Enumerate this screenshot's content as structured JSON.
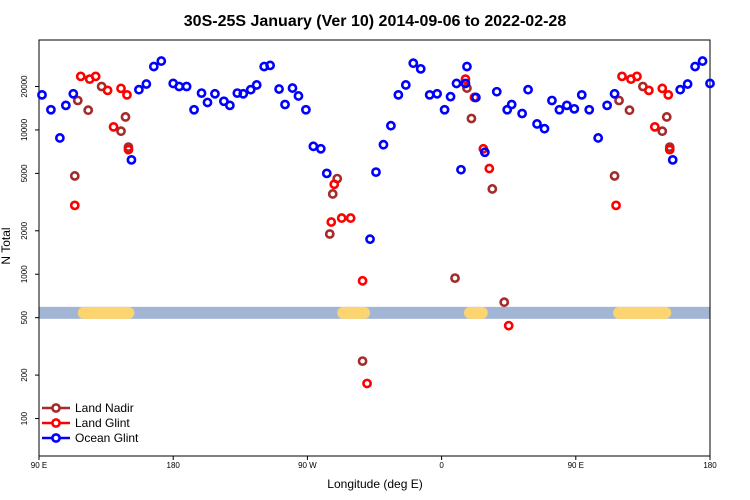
{
  "chart_data": {
    "type": "scatter",
    "title": "30S-25S January (Ver 10)   2014-09-06 to 2022-02-28",
    "xlabel": "Longitude (deg E)",
    "ylabel": "N Total",
    "y_scale": "log",
    "xlim": [
      90,
      540
    ],
    "ylim": [
      55,
      42000
    ],
    "x_ticks": [
      {
        "value": 90,
        "label": "90 E"
      },
      {
        "value": 180,
        "label": "180"
      },
      {
        "value": 270,
        "label": "90 W"
      },
      {
        "value": 360,
        "label": "0"
      },
      {
        "value": 450,
        "label": "90 E"
      },
      {
        "value": 540,
        "label": "180"
      }
    ],
    "y_ticks": [
      {
        "value": 100,
        "label": "100"
      },
      {
        "value": 200,
        "label": "200"
      },
      {
        "value": 500,
        "label": "500"
      },
      {
        "value": 1000,
        "label": "1000"
      },
      {
        "value": 2000,
        "label": "2000"
      },
      {
        "value": 5000,
        "label": "5000"
      },
      {
        "value": 10000,
        "label": "10000"
      },
      {
        "value": 20000,
        "label": "20000"
      }
    ],
    "band": {
      "y": 540,
      "ocean_color": "#a2b5d4",
      "land_color": "#fcd570",
      "land_ranges": [
        [
          116,
          154
        ],
        [
          290,
          312
        ],
        [
          375,
          391
        ],
        [
          475,
          514
        ]
      ]
    },
    "series": [
      {
        "name": "Land Nadir",
        "color": "#a52a2a",
        "points": [
          [
            114,
            4800
          ],
          [
            116,
            16000
          ],
          [
            123,
            13700
          ],
          [
            132,
            20000
          ],
          [
            145,
            9800
          ],
          [
            148,
            12300
          ],
          [
            150,
            7600
          ],
          [
            285,
            1900
          ],
          [
            287,
            3600
          ],
          [
            290,
            4600
          ],
          [
            307,
            250
          ],
          [
            402,
            640
          ],
          [
            369,
            940
          ],
          [
            377,
            19500
          ],
          [
            380,
            12000
          ],
          [
            394,
            3900
          ],
          [
            476,
            4800
          ],
          [
            479,
            16000
          ],
          [
            486,
            13700
          ],
          [
            495,
            20000
          ],
          [
            508,
            9800
          ],
          [
            511,
            12300
          ],
          [
            513,
            7600
          ]
        ]
      },
      {
        "name": "Land Glint",
        "color": "#ff0000",
        "points": [
          [
            114,
            3000
          ],
          [
            118,
            23500
          ],
          [
            124,
            22500
          ],
          [
            128,
            23500
          ],
          [
            136,
            18800
          ],
          [
            140,
            10500
          ],
          [
            145,
            19400
          ],
          [
            149,
            17500
          ],
          [
            150,
            7300
          ],
          [
            286,
            2300
          ],
          [
            288,
            4200
          ],
          [
            293,
            2450
          ],
          [
            299,
            2450
          ],
          [
            307,
            900
          ],
          [
            310,
            175
          ],
          [
            376,
            22500
          ],
          [
            382,
            16800
          ],
          [
            388,
            7400
          ],
          [
            392,
            5400
          ],
          [
            405,
            440
          ],
          [
            477,
            3000
          ],
          [
            481,
            23500
          ],
          [
            487,
            22500
          ],
          [
            491,
            23500
          ],
          [
            499,
            18800
          ],
          [
            503,
            10500
          ],
          [
            508,
            19400
          ],
          [
            512,
            17500
          ],
          [
            513,
            7300
          ]
        ]
      },
      {
        "name": "Ocean Glint",
        "color": "#0000ff",
        "points": [
          [
            92,
            17500
          ],
          [
            98,
            13800
          ],
          [
            104,
            8800
          ],
          [
            108,
            14800
          ],
          [
            113,
            17800
          ],
          [
            152,
            6200
          ],
          [
            157,
            19000
          ],
          [
            162,
            20800
          ],
          [
            167,
            27500
          ],
          [
            172,
            30000
          ],
          [
            180,
            21000
          ],
          [
            184,
            20000
          ],
          [
            189,
            20000
          ],
          [
            194,
            13800
          ],
          [
            199,
            18000
          ],
          [
            203,
            15500
          ],
          [
            208,
            17800
          ],
          [
            214,
            15800
          ],
          [
            218,
            14800
          ],
          [
            223,
            18000
          ],
          [
            227,
            17800
          ],
          [
            232,
            19000
          ],
          [
            236,
            20500
          ],
          [
            241,
            27500
          ],
          [
            245,
            28000
          ],
          [
            251,
            19200
          ],
          [
            255,
            15000
          ],
          [
            260,
            19500
          ],
          [
            264,
            17200
          ],
          [
            269,
            13800
          ],
          [
            274,
            7700
          ],
          [
            279,
            7400
          ],
          [
            283,
            5000
          ],
          [
            312,
            1750
          ],
          [
            316,
            5100
          ],
          [
            321,
            7900
          ],
          [
            326,
            10700
          ],
          [
            331,
            17500
          ],
          [
            336,
            20500
          ],
          [
            341,
            29000
          ],
          [
            346,
            26500
          ],
          [
            352,
            17500
          ],
          [
            357,
            17800
          ],
          [
            362,
            13800
          ],
          [
            366,
            17000
          ],
          [
            370,
            21000
          ],
          [
            373,
            5300
          ],
          [
            376,
            21000
          ],
          [
            377,
            27500
          ],
          [
            383,
            16800
          ],
          [
            389,
            7000
          ],
          [
            397,
            18400
          ],
          [
            404,
            13800
          ],
          [
            407,
            15000
          ],
          [
            414,
            13000
          ],
          [
            418,
            19000
          ],
          [
            424,
            11000
          ],
          [
            429,
            10200
          ],
          [
            434,
            16000
          ],
          [
            439,
            13800
          ],
          [
            444,
            14800
          ],
          [
            449,
            14000
          ],
          [
            454,
            17500
          ],
          [
            459,
            13800
          ],
          [
            465,
            8800
          ],
          [
            471,
            14800
          ],
          [
            476,
            17800
          ],
          [
            515,
            6200
          ],
          [
            520,
            19000
          ],
          [
            525,
            20800
          ],
          [
            530,
            27500
          ],
          [
            535,
            30000
          ],
          [
            540,
            21000
          ]
        ]
      }
    ]
  }
}
